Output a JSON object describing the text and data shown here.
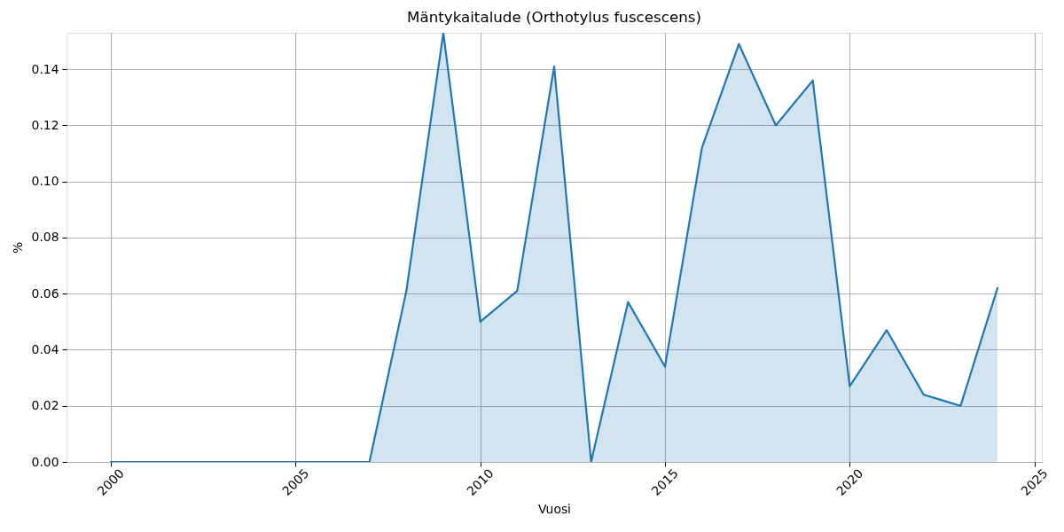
{
  "chart_data": {
    "type": "area",
    "title": "Mäntykaitalude (Orthotylus fuscescens)",
    "xlabel": "Vuosi",
    "ylabel": "%",
    "x": [
      2000,
      2001,
      2002,
      2003,
      2004,
      2005,
      2006,
      2007,
      2008,
      2009,
      2010,
      2011,
      2012,
      2013,
      2014,
      2015,
      2016,
      2017,
      2018,
      2019,
      2020,
      2021,
      2022,
      2023,
      2024
    ],
    "series": [
      {
        "color": "#1f77b4",
        "values": [
          0,
          0,
          0,
          0,
          0,
          0,
          0,
          0,
          0.061,
          0.153,
          0.05,
          0.061,
          0.141,
          0,
          0.057,
          0.034,
          0.112,
          0.149,
          0.12,
          0.136,
          0.027,
          0.047,
          0.024,
          0.02,
          0.062
        ]
      }
    ],
    "xlim": [
      1998.8,
      2025.2
    ],
    "xticks": [
      2000,
      2005,
      2010,
      2015,
      2020,
      2025
    ],
    "ylim": [
      0,
      0.153
    ],
    "yticks": [
      {
        "value": 0,
        "label": "0.00"
      },
      0.02,
      0.04,
      0.06,
      0.08,
      {
        "value": 0.1,
        "label": "0.10"
      },
      0.12,
      0.14
    ],
    "grid": true
  }
}
